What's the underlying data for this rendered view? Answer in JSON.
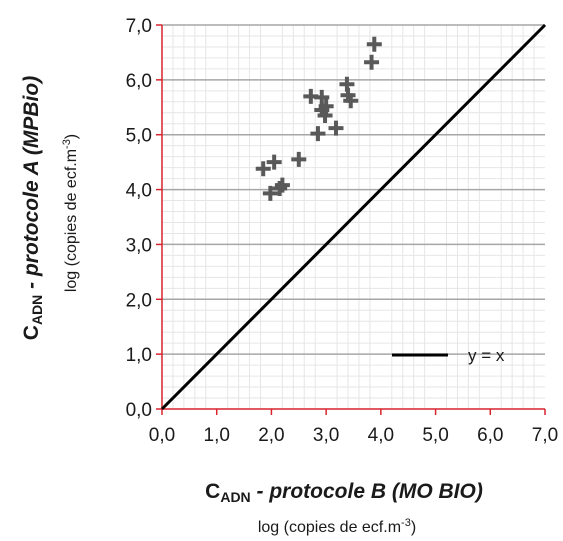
{
  "chart_data": {
    "type": "scatter",
    "title": "",
    "xlim": [
      0,
      7
    ],
    "ylim": [
      0,
      7
    ],
    "x_ticks": [
      "0,0",
      "1,0",
      "2,0",
      "3,0",
      "4,0",
      "5,0",
      "6,0",
      "7,0"
    ],
    "y_ticks": [
      "0,0",
      "1,0",
      "2,0",
      "3,0",
      "4,0",
      "5,0",
      "6,0",
      "7,0"
    ],
    "xlabel": {
      "main": "C",
      "sub": "ADN",
      "rest": " - protocole B (MO BIO)",
      "unit_prefix": "log (copies de ecf.m",
      "unit_sup": "-3",
      "unit_suffix": ")"
    },
    "ylabel": {
      "main": "C",
      "sub": "ADN",
      "rest": " - protocole A (MPBio)",
      "unit_prefix": "log (copies de ecf.m",
      "unit_sup": "-3",
      "unit_suffix": ")"
    },
    "legend": {
      "label": "y = x",
      "position": "lower-right"
    },
    "grid": {
      "major_y": true,
      "minor": true
    },
    "colors": {
      "points": "#595959",
      "identity_line": "#000000",
      "axis": "#d9232d",
      "grid": "#a6a6a6",
      "minor_grid": "#e6e6e6"
    },
    "series": [
      {
        "marker": "plus",
        "points": [
          {
            "x": 1.85,
            "y": 4.38
          },
          {
            "x": 1.98,
            "y": 3.93
          },
          {
            "x": 2.05,
            "y": 4.5
          },
          {
            "x": 2.15,
            "y": 4.02
          },
          {
            "x": 2.2,
            "y": 4.08
          },
          {
            "x": 2.5,
            "y": 4.55
          },
          {
            "x": 2.72,
            "y": 5.7
          },
          {
            "x": 2.85,
            "y": 5.02
          },
          {
            "x": 2.92,
            "y": 5.68
          },
          {
            "x": 2.92,
            "y": 5.45
          },
          {
            "x": 2.98,
            "y": 5.35
          },
          {
            "x": 3.0,
            "y": 5.52
          },
          {
            "x": 3.18,
            "y": 5.12
          },
          {
            "x": 3.38,
            "y": 5.92
          },
          {
            "x": 3.4,
            "y": 5.72
          },
          {
            "x": 3.45,
            "y": 5.62
          },
          {
            "x": 3.83,
            "y": 6.32
          },
          {
            "x": 3.88,
            "y": 6.65
          }
        ]
      }
    ]
  }
}
